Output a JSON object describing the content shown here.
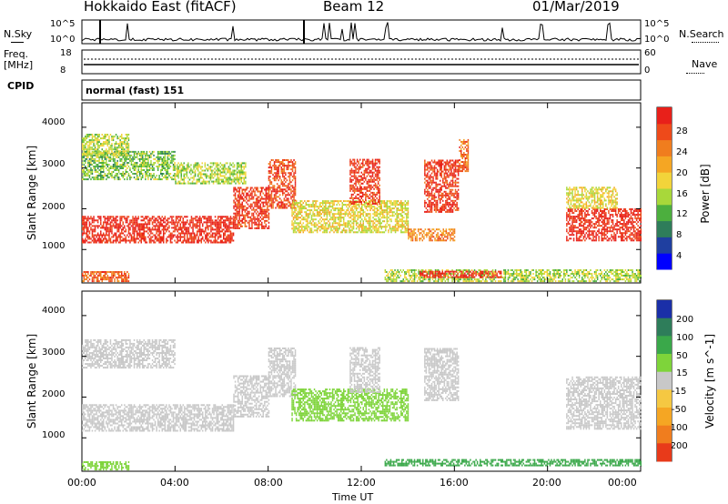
{
  "header": {
    "station": "Hokkaido East (fitACF)",
    "beam": "Beam 12",
    "date": "01/Mar/2019"
  },
  "strips": {
    "nsky_label": "N.Sky",
    "nsky_ticks": [
      "10^5",
      "10^0"
    ],
    "nsearch_label": "N.Search",
    "nsearch_ticks": [
      "10^5",
      "10^0"
    ],
    "freq_label": "Freq.",
    "freq_unit": "[MHz]",
    "freq_ticks": [
      "18",
      "8"
    ],
    "nave_label": "Nave",
    "nave_ticks": [
      "60",
      "0"
    ],
    "cpid_label": "CPID",
    "cpid_value": "normal (fast) 151"
  },
  "chart_data": [
    {
      "type": "heatmap",
      "panel": "power",
      "title": "",
      "xlabel": "Time UT",
      "ylabel": "Slant Range [km]",
      "x_ticks": [
        "00:00",
        "04:00",
        "08:00",
        "12:00",
        "16:00",
        "20:00",
        "00:00"
      ],
      "y_ticks": [
        1000,
        2000,
        3000,
        4000
      ],
      "xlim": [
        0,
        24
      ],
      "ylim": [
        180,
        4600
      ],
      "colorbar": {
        "label": "Power [dB]",
        "ticks": [
          4,
          8,
          12,
          16,
          20,
          24,
          28
        ],
        "range": [
          0,
          30
        ],
        "colors": [
          "#0000ff",
          "#1f3fa0",
          "#2e7d5a",
          "#4caf3e",
          "#a8d83a",
          "#f2d43a",
          "#f5a623",
          "#f07d1e",
          "#ee4a1a",
          "#e8201a"
        ]
      },
      "regions": [
        {
          "t": [
            0.0,
            6.5
          ],
          "r": [
            1150,
            1800
          ],
          "value": 28
        },
        {
          "t": [
            6.5,
            8.0
          ],
          "r": [
            1500,
            2500
          ],
          "value": 27
        },
        {
          "t": [
            8.0,
            9.2
          ],
          "r": [
            2000,
            3200
          ],
          "value": 26
        },
        {
          "t": [
            0.0,
            4.0
          ],
          "r": [
            2700,
            3400
          ],
          "value": 12
        },
        {
          "t": [
            4.0,
            7.0
          ],
          "r": [
            2600,
            3100
          ],
          "value": 14
        },
        {
          "t": [
            0.0,
            2.0
          ],
          "r": [
            3300,
            3800
          ],
          "value": 14
        },
        {
          "t": [
            9.0,
            14.0
          ],
          "r": [
            1400,
            2200
          ],
          "value": 16
        },
        {
          "t": [
            14.0,
            16.0
          ],
          "r": [
            1200,
            1500
          ],
          "value": 22
        },
        {
          "t": [
            11.5,
            12.8
          ],
          "r": [
            2100,
            3200
          ],
          "value": 27
        },
        {
          "t": [
            14.7,
            16.2
          ],
          "r": [
            1900,
            3200
          ],
          "value": 27
        },
        {
          "t": [
            16.2,
            16.6
          ],
          "r": [
            2900,
            3700
          ],
          "value": 24
        },
        {
          "t": [
            20.8,
            24.0
          ],
          "r": [
            1200,
            2000
          ],
          "value": 28
        },
        {
          "t": [
            20.8,
            23.0
          ],
          "r": [
            2000,
            2500
          ],
          "value": 16
        },
        {
          "t": [
            13.0,
            24.0
          ],
          "r": [
            200,
            500
          ],
          "value": 14
        },
        {
          "t": [
            0.0,
            2.0
          ],
          "r": [
            200,
            450
          ],
          "value": 24
        },
        {
          "t": [
            14.5,
            18.0
          ],
          "r": [
            300,
            450
          ],
          "value": 28
        }
      ]
    },
    {
      "type": "heatmap",
      "panel": "velocity",
      "title": "",
      "xlabel": "Time UT",
      "ylabel": "Slant Range [km]",
      "x_ticks": [
        "00:00",
        "04:00",
        "08:00",
        "12:00",
        "16:00",
        "20:00",
        "00:00"
      ],
      "y_ticks": [
        1000,
        2000,
        3000,
        4000
      ],
      "xlim": [
        0,
        24
      ],
      "ylim": [
        180,
        4600
      ],
      "colorbar": {
        "label": "Velocity [m s^-1]",
        "ticks": [
          200,
          100,
          50,
          15,
          -15,
          -50,
          -100,
          -200
        ],
        "colors": [
          "#1a2fa8",
          "#2e7d5a",
          "#3aa84a",
          "#7ed43a",
          "#c8c8c8",
          "#f5c842",
          "#f5a623",
          "#f07d1e",
          "#e83a1a"
        ]
      },
      "regions": [
        {
          "t": [
            0.0,
            6.5
          ],
          "r": [
            1150,
            1800
          ],
          "value": 0
        },
        {
          "t": [
            6.5,
            8.0
          ],
          "r": [
            1500,
            2500
          ],
          "value": 0
        },
        {
          "t": [
            8.0,
            9.2
          ],
          "r": [
            2000,
            3200
          ],
          "value": 0
        },
        {
          "t": [
            0.0,
            4.0
          ],
          "r": [
            2700,
            3400
          ],
          "value": 0
        },
        {
          "t": [
            9.0,
            14.0
          ],
          "r": [
            1400,
            2200
          ],
          "value": 40
        },
        {
          "t": [
            11.5,
            12.8
          ],
          "r": [
            2100,
            3200
          ],
          "value": 0
        },
        {
          "t": [
            14.7,
            16.2
          ],
          "r": [
            1900,
            3200
          ],
          "value": 0
        },
        {
          "t": [
            20.8,
            24.0
          ],
          "r": [
            1200,
            2500
          ],
          "value": 0
        },
        {
          "t": [
            13.0,
            24.0
          ],
          "r": [
            300,
            450
          ],
          "value": 60
        },
        {
          "t": [
            0.0,
            2.0
          ],
          "r": [
            200,
            400
          ],
          "value": 30
        }
      ]
    }
  ]
}
